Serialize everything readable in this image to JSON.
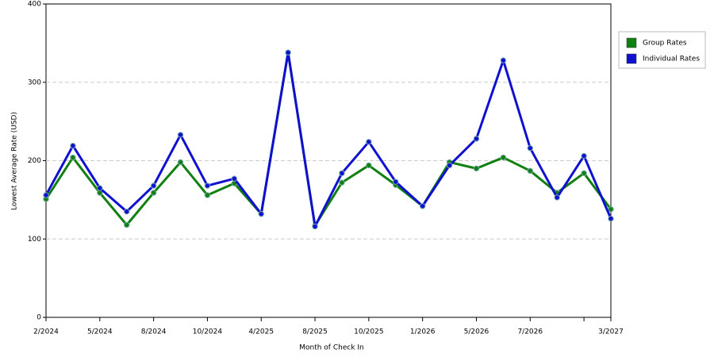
{
  "chart_data": {
    "type": "line",
    "x_label": "Month of Check In",
    "y_label": "Lowest Average Rate (USD)",
    "categories": [
      "2/2024",
      null,
      "5/2024",
      null,
      "8/2024",
      null,
      "10/2024",
      null,
      "4/2025",
      null,
      "8/2025",
      null,
      "10/2025",
      null,
      "1/2026",
      null,
      "5/2026",
      null,
      "7/2026",
      null,
      null,
      "3/2027"
    ],
    "series": [
      {
        "name": "Group Rates",
        "color": "#108010",
        "values": [
          151,
          204,
          159,
          118,
          159,
          198,
          156,
          171,
          132,
          338,
          117,
          172,
          194,
          169,
          142,
          198,
          190,
          204,
          187,
          159,
          184,
          138
        ]
      },
      {
        "name": "Individual Rates",
        "color": "#1010d0",
        "values": [
          156,
          219,
          165,
          135,
          168,
          233,
          168,
          177,
          132,
          338,
          116,
          184,
          224,
          173,
          142,
          194,
          228,
          328,
          216,
          153,
          206,
          126
        ]
      }
    ],
    "ylim": [
      0,
      400
    ],
    "yticks": [
      0,
      100,
      200,
      300,
      400
    ],
    "grid": true,
    "legend": "right"
  }
}
